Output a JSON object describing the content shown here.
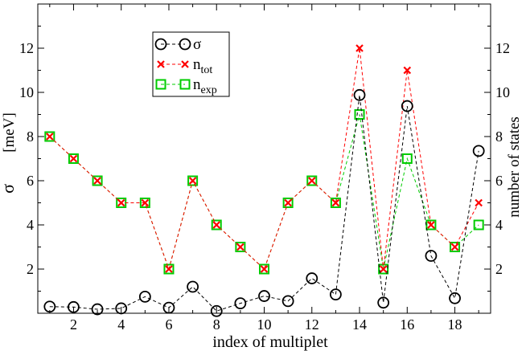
{
  "chart_data": {
    "type": "line",
    "title": "",
    "xlabel": "index of multiplet",
    "ylabel_left_symbol": "σ",
    "ylabel_left_unit": "[meV]",
    "ylabel_right": "number of states",
    "xlim": [
      0.5,
      19.5
    ],
    "ylim": [
      0,
      14
    ],
    "x_ticks": [
      2,
      4,
      6,
      8,
      10,
      12,
      14,
      16,
      18
    ],
    "y_ticks_left": [
      2,
      4,
      6,
      8,
      10,
      12
    ],
    "y_ticks_right": [
      2,
      4,
      6,
      8,
      10,
      12
    ],
    "x": [
      1,
      2,
      3,
      4,
      5,
      6,
      7,
      8,
      9,
      10,
      11,
      12,
      13,
      14,
      15,
      16,
      17,
      18,
      19
    ],
    "grid": false,
    "legend_position": "top-left",
    "series": [
      {
        "name": "σ",
        "color": "#000000",
        "marker": "circle",
        "values": [
          0.3,
          0.28,
          0.18,
          0.22,
          0.75,
          0.25,
          1.2,
          0.1,
          0.45,
          0.78,
          0.55,
          1.58,
          0.85,
          9.88,
          0.48,
          9.38,
          2.6,
          0.68,
          7.35
        ]
      },
      {
        "name": "n",
        "name_sub": "tot",
        "color": "#ff0000",
        "marker": "x",
        "values": [
          8,
          7,
          6,
          5,
          5,
          2,
          6,
          4,
          3,
          2,
          5,
          6,
          5,
          12,
          2,
          11,
          4,
          3,
          5
        ]
      },
      {
        "name": "n",
        "name_sub": "exp",
        "color": "#00cc00",
        "marker": "square",
        "values": [
          8,
          7,
          6,
          5,
          5,
          2,
          6,
          4,
          3,
          2,
          5,
          6,
          5,
          9,
          2,
          7,
          4,
          3,
          4
        ]
      }
    ]
  }
}
